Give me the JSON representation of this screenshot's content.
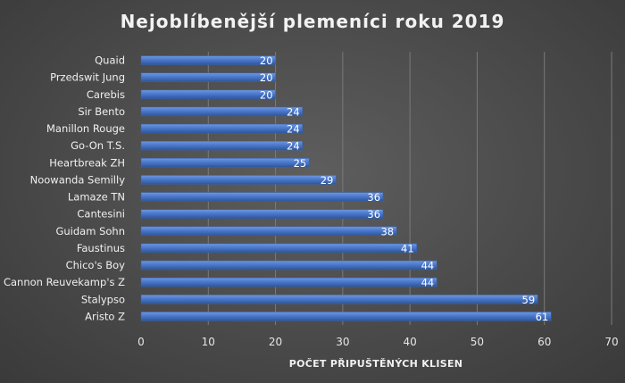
{
  "chart_data": {
    "type": "bar",
    "orientation": "horizontal",
    "title": "Nejoblíbenější plemeníci roku 2019",
    "xlabel": "POČET PŘIPUŠTĚNÝCH KLISEN",
    "ylabel": "",
    "categories": [
      "Quaid",
      "Przedswit Jung",
      "Carebis",
      "Sir Bento",
      "Manillon Rouge",
      "Go-On T.S.",
      "Heartbreak ZH",
      "Noowanda Semilly",
      "Lamaze TN",
      "Cantesini",
      "Guidam Sohn",
      "Faustinus",
      "Chico's Boy",
      "Cannon Reuvekamp's Z",
      "Stalypso",
      "Aristo Z"
    ],
    "values": [
      20,
      20,
      20,
      24,
      24,
      24,
      25,
      29,
      36,
      36,
      38,
      41,
      44,
      44,
      59,
      61
    ],
    "xlim": [
      0,
      70
    ],
    "xticks": [
      0,
      10,
      20,
      30,
      40,
      50,
      60,
      70
    ],
    "grid": true,
    "legend": "none",
    "data_labels": true,
    "colors": {
      "bar": "#4472c4",
      "bar_light": "#6a93dc",
      "bar_dark": "#2f5597",
      "background": "#4f4f4f",
      "text": "#f2f2f2"
    }
  }
}
